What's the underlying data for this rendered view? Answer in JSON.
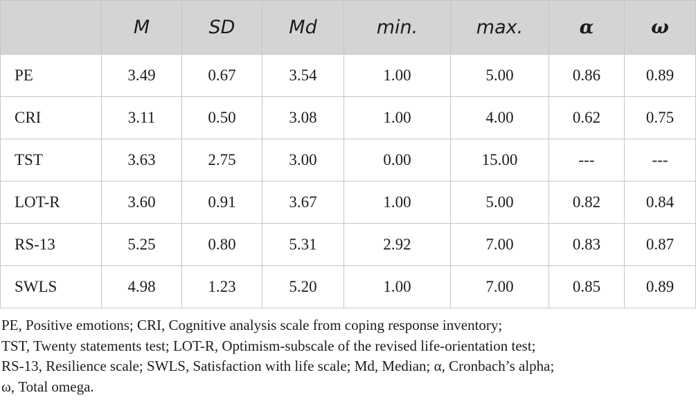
{
  "table": {
    "columns": [
      "",
      "M",
      "SD",
      "Md",
      "min.",
      "max.",
      "α",
      "ω"
    ],
    "rows": [
      {
        "label": "PE",
        "values": [
          "3.49",
          "0.67",
          "3.54",
          "1.00",
          "5.00",
          "0.86",
          "0.89"
        ]
      },
      {
        "label": "CRI",
        "values": [
          "3.11",
          "0.50",
          "3.08",
          "1.00",
          "4.00",
          "0.62",
          "0.75"
        ]
      },
      {
        "label": "TST",
        "values": [
          "3.63",
          "2.75",
          "3.00",
          "0.00",
          "15.00",
          "---",
          "---"
        ]
      },
      {
        "label": "LOT-R",
        "values": [
          "3.60",
          "0.91",
          "3.67",
          "1.00",
          "5.00",
          "0.82",
          "0.84"
        ]
      },
      {
        "label": "RS-13",
        "values": [
          "5.25",
          "0.80",
          "5.31",
          "2.92",
          "7.00",
          "0.83",
          "0.87"
        ]
      },
      {
        "label": "SWLS",
        "values": [
          "4.98",
          "1.23",
          "5.20",
          "1.00",
          "7.00",
          "0.85",
          "0.89"
        ]
      }
    ]
  },
  "footnote": {
    "lines": [
      "PE, Positive emotions; CRI, Cognitive analysis scale from coping response inventory;",
      "TST, Twenty statements test; LOT-R, Optimism-subscale of the revised life-orientation test;",
      "RS-13, Resilience scale; SWLS, Satisfaction with life scale; Md, Median; α, Cronbach’s alpha;",
      "ω, Total omega."
    ]
  }
}
